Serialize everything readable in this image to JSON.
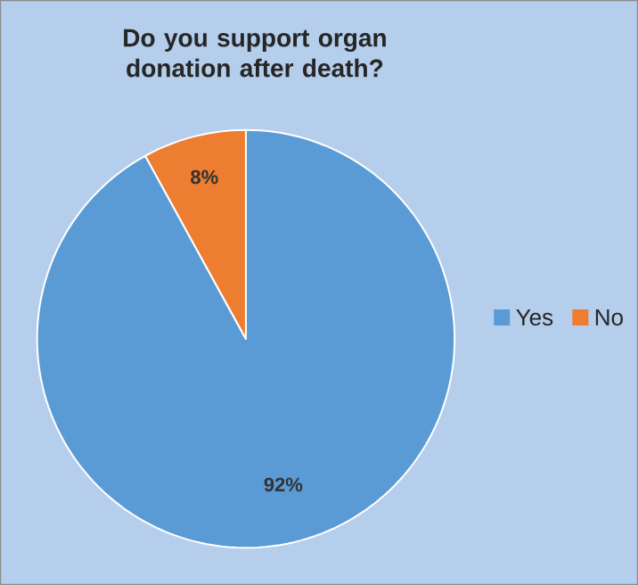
{
  "chart_data": {
    "type": "pie",
    "title": "Do you support organ donation after death?",
    "categories": [
      "Yes",
      "No"
    ],
    "values": [
      92,
      8
    ],
    "colors": [
      "#5b9bd5",
      "#ed7d31"
    ],
    "value_labels": [
      "92%",
      "8%"
    ],
    "legend": "right"
  }
}
